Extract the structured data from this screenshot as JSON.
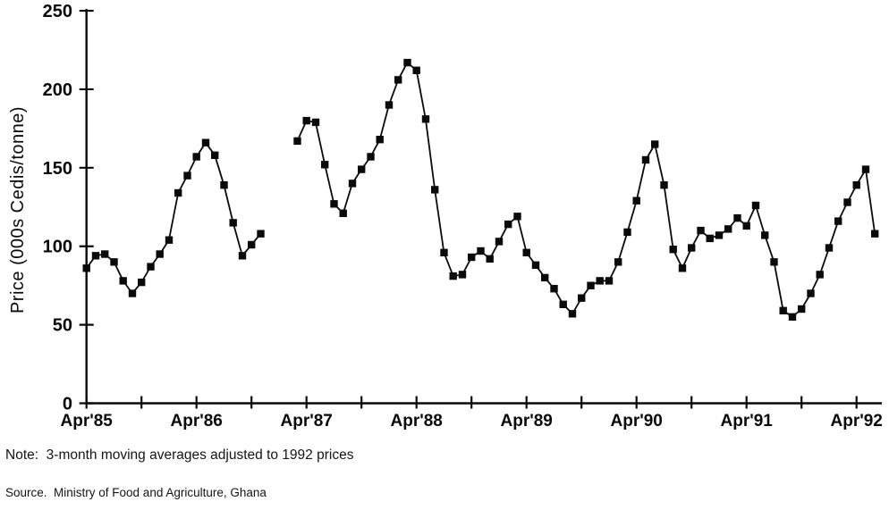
{
  "chart_data": {
    "type": "line",
    "title": "",
    "xlabel": "",
    "ylabel": "Price (000s Cedis/tonne)",
    "ylim": [
      0,
      250
    ],
    "y_ticks": [
      0,
      50,
      100,
      150,
      200,
      250
    ],
    "x_tick_labels": [
      "Apr'85",
      "Apr'86",
      "Apr'87",
      "Apr'88",
      "Apr'89",
      "Apr'90",
      "Apr'91",
      "Apr'92"
    ],
    "x_tick_month_indices": [
      0,
      12,
      24,
      36,
      48,
      60,
      72,
      84
    ],
    "minor_tick_month_indices": [
      6,
      18,
      30,
      42,
      54,
      66,
      78
    ],
    "grid": false,
    "legend": false,
    "marker_style": "filled-square",
    "line_color": "#0a0a0a",
    "gap_months": [
      "Dec'86",
      "Jan'87",
      "Feb'87"
    ],
    "x": [
      "Apr'85",
      "May'85",
      "Jun'85",
      "Jul'85",
      "Aug'85",
      "Sep'85",
      "Oct'85",
      "Nov'85",
      "Dec'85",
      "Jan'86",
      "Feb'86",
      "Mar'86",
      "Apr'86",
      "May'86",
      "Jun'86",
      "Jul'86",
      "Aug'86",
      "Sep'86",
      "Oct'86",
      "Nov'86",
      "Dec'86",
      "Jan'87",
      "Feb'87",
      "Mar'87",
      "Apr'87",
      "May'87",
      "Jun'87",
      "Jul'87",
      "Aug'87",
      "Sep'87",
      "Oct'87",
      "Nov'87",
      "Dec'87",
      "Jan'88",
      "Feb'88",
      "Mar'88",
      "Apr'88",
      "May'88",
      "Jun'88",
      "Jul'88",
      "Aug'88",
      "Sep'88",
      "Oct'88",
      "Nov'88",
      "Dec'88",
      "Jan'89",
      "Feb'89",
      "Mar'89",
      "Apr'89",
      "May'89",
      "Jun'89",
      "Jul'89",
      "Aug'89",
      "Sep'89",
      "Oct'89",
      "Nov'89",
      "Dec'89",
      "Jan'90",
      "Feb'90",
      "Mar'90",
      "Apr'90",
      "May'90",
      "Jun'90",
      "Jul'90",
      "Aug'90",
      "Sep'90",
      "Oct'90",
      "Nov'90",
      "Dec'90",
      "Jan'91",
      "Feb'91",
      "Mar'91",
      "Apr'91",
      "May'91",
      "Jun'91",
      "Jul'91",
      "Aug'91",
      "Sep'91",
      "Oct'91",
      "Nov'91",
      "Dec'91",
      "Jan'92",
      "Feb'92",
      "Mar'92",
      "Apr'92",
      "May'92",
      "Jun'92"
    ],
    "values": [
      86,
      94,
      95,
      90,
      78,
      70,
      77,
      87,
      95,
      104,
      134,
      145,
      157,
      166,
      158,
      139,
      115,
      94,
      101,
      108,
      null,
      null,
      null,
      167,
      180,
      179,
      152,
      127,
      121,
      140,
      149,
      157,
      168,
      190,
      206,
      217,
      212,
      181,
      136,
      96,
      81,
      82,
      93,
      97,
      92,
      103,
      114,
      119,
      96,
      88,
      80,
      73,
      63,
      57,
      67,
      75,
      78,
      78,
      90,
      109,
      129,
      155,
      165,
      139,
      98,
      86,
      99,
      110,
      105,
      107,
      111,
      118,
      113,
      126,
      107,
      90,
      59,
      55,
      60,
      70,
      82,
      99,
      116,
      128,
      139,
      149,
      108
    ]
  },
  "note": {
    "text": "Note:  3-month moving averages adjusted to 1992 prices"
  },
  "source": {
    "text": "Source.  Ministry of Food and Agriculture, Ghana"
  }
}
